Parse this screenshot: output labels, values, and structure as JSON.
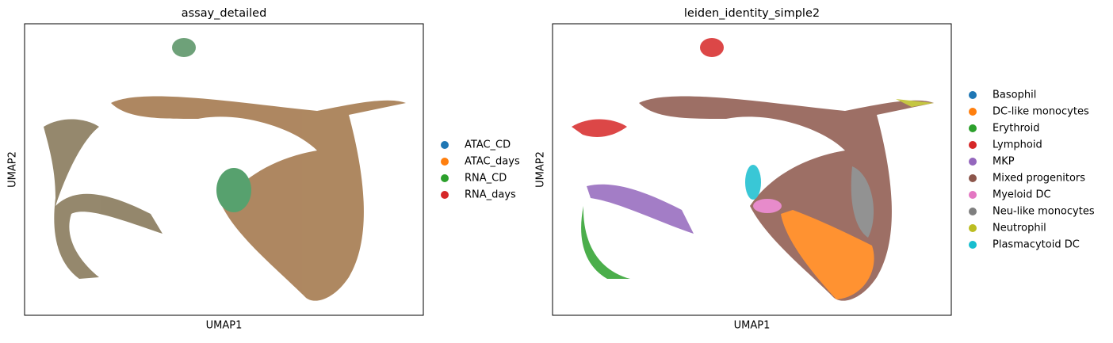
{
  "chart_data": [
    {
      "type": "scatter",
      "title": "assay_detailed",
      "xlabel": "UMAP1",
      "ylabel": "UMAP2",
      "series": [
        {
          "name": "ATAC_CD",
          "color": "#1f77b4"
        },
        {
          "name": "ATAC_days",
          "color": "#ff7f0e"
        },
        {
          "name": "RNA_CD",
          "color": "#2ca02c"
        },
        {
          "name": "RNA_days",
          "color": "#d62728"
        }
      ]
    },
    {
      "type": "scatter",
      "title": "leiden_identity_simple2",
      "xlabel": "UMAP1",
      "ylabel": "UMAP2",
      "series": [
        {
          "name": "Basophil",
          "color": "#1f77b4"
        },
        {
          "name": "DC-like monocytes",
          "color": "#ff7f0e"
        },
        {
          "name": "Erythroid",
          "color": "#2ca02c"
        },
        {
          "name": "Lymphoid",
          "color": "#d62728"
        },
        {
          "name": "MKP",
          "color": "#9467bd"
        },
        {
          "name": "Mixed progenitors",
          "color": "#8c564b"
        },
        {
          "name": "Myeloid DC",
          "color": "#e377c2"
        },
        {
          "name": "Neu-like monocytes",
          "color": "#7f7f7f"
        },
        {
          "name": "Neutrophil",
          "color": "#bcbd22"
        },
        {
          "name": "Plasmacytoid DC",
          "color": "#17becf"
        }
      ]
    }
  ]
}
